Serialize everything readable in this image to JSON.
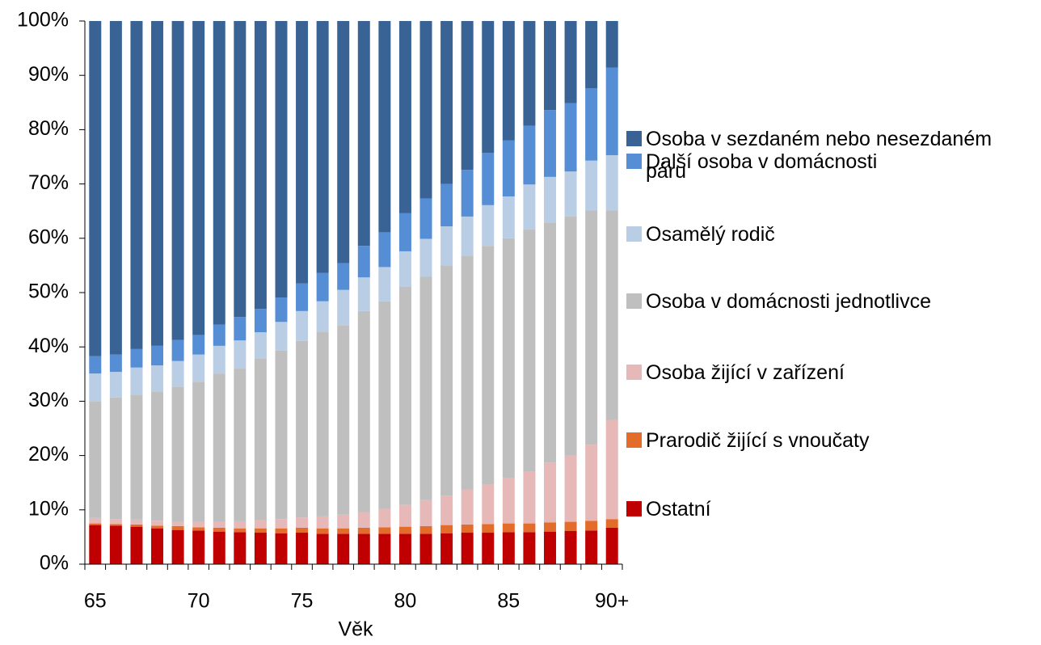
{
  "chart_data": {
    "type": "stacked_bar",
    "x_label": "Věk",
    "categories": [
      "65",
      null,
      null,
      null,
      null,
      "70",
      null,
      null,
      null,
      null,
      "75",
      null,
      null,
      null,
      null,
      "80",
      null,
      null,
      null,
      null,
      "85",
      null,
      null,
      null,
      null,
      "90+"
    ],
    "ylim": [
      0,
      100
    ],
    "yticks": [
      {
        "value": 0,
        "label": "0%"
      },
      {
        "value": 10,
        "label": "10%"
      },
      {
        "value": 20,
        "label": "20%"
      },
      {
        "value": 30,
        "label": "30%"
      },
      {
        "value": 40,
        "label": "40%"
      },
      {
        "value": 50,
        "label": "50%"
      },
      {
        "value": 60,
        "label": "60%"
      },
      {
        "value": 70,
        "label": "70%"
      },
      {
        "value": 80,
        "label": "80%"
      },
      {
        "value": 90,
        "label": "90%"
      },
      {
        "value": 100,
        "label": "100%"
      }
    ],
    "series": [
      {
        "name": "Ostatní",
        "color": "#c00000",
        "values": [
          7.2,
          7.1,
          6.9,
          6.6,
          6.3,
          6.2,
          6.0,
          5.9,
          5.8,
          5.7,
          5.8,
          5.6,
          5.6,
          5.6,
          5.6,
          5.6,
          5.6,
          5.7,
          5.8,
          5.8,
          5.9,
          5.9,
          6.0,
          6.1,
          6.2,
          6.7
        ]
      },
      {
        "name": "Prarodič žijící s vnoučaty",
        "color": "#e46c2a",
        "values": [
          0.3,
          0.3,
          0.4,
          0.5,
          0.7,
          0.6,
          0.7,
          0.7,
          0.8,
          0.9,
          0.9,
          1.0,
          1.0,
          1.1,
          1.2,
          1.3,
          1.4,
          1.5,
          1.5,
          1.6,
          1.6,
          1.6,
          1.7,
          1.7,
          1.8,
          1.6
        ]
      },
      {
        "name": "Osoba žijící v zařízení",
        "color": "#e6b9b8",
        "values": [
          1.0,
          0.9,
          0.9,
          0.9,
          0.8,
          1.0,
          1.1,
          1.3,
          1.5,
          1.7,
          1.9,
          2.2,
          2.5,
          2.9,
          3.4,
          4.0,
          4.8,
          5.4,
          6.4,
          7.2,
          8.3,
          9.5,
          11.0,
          12.2,
          14.0,
          18.2
        ]
      },
      {
        "name": "Osoba v domácnosti jednotlivce",
        "color": "#bfbfbf",
        "values": [
          21.5,
          22.4,
          23.0,
          23.8,
          24.9,
          25.8,
          27.3,
          28.1,
          29.7,
          31.0,
          32.5,
          34.0,
          34.9,
          37.0,
          38.2,
          40.2,
          41.1,
          42.4,
          43.1,
          44.0,
          44.2,
          44.6,
          44.2,
          44.0,
          43.1,
          38.6
        ]
      },
      {
        "name": "Osamělý rodič",
        "color": "#b9cde5",
        "values": [
          5.1,
          4.7,
          5.0,
          4.8,
          4.7,
          5.0,
          5.1,
          5.2,
          4.9,
          5.3,
          5.5,
          5.6,
          6.5,
          6.2,
          6.3,
          6.5,
          7.0,
          7.2,
          7.2,
          7.5,
          7.7,
          8.3,
          8.4,
          8.3,
          9.2,
          10.2
        ]
      },
      {
        "name": "Další osoba v domácnosti",
        "color": "#558ed5",
        "values": [
          3.2,
          3.2,
          3.4,
          3.6,
          3.9,
          3.6,
          3.9,
          4.3,
          4.3,
          4.5,
          5.1,
          5.2,
          4.9,
          5.8,
          6.4,
          7.0,
          7.4,
          7.8,
          8.6,
          9.6,
          10.3,
          10.8,
          12.3,
          12.6,
          13.3,
          16.1
        ]
      },
      {
        "name": "Osoba v sezdaném nebo nesezdaném páru",
        "color": "#3a6395",
        "values": [
          61.7,
          61.4,
          60.4,
          59.8,
          58.7,
          57.8,
          55.9,
          54.5,
          53.0,
          50.9,
          48.3,
          46.4,
          44.6,
          41.4,
          38.9,
          35.4,
          32.7,
          30.0,
          27.4,
          24.3,
          22.0,
          19.3,
          16.4,
          15.1,
          12.4,
          8.6
        ]
      }
    ]
  }
}
